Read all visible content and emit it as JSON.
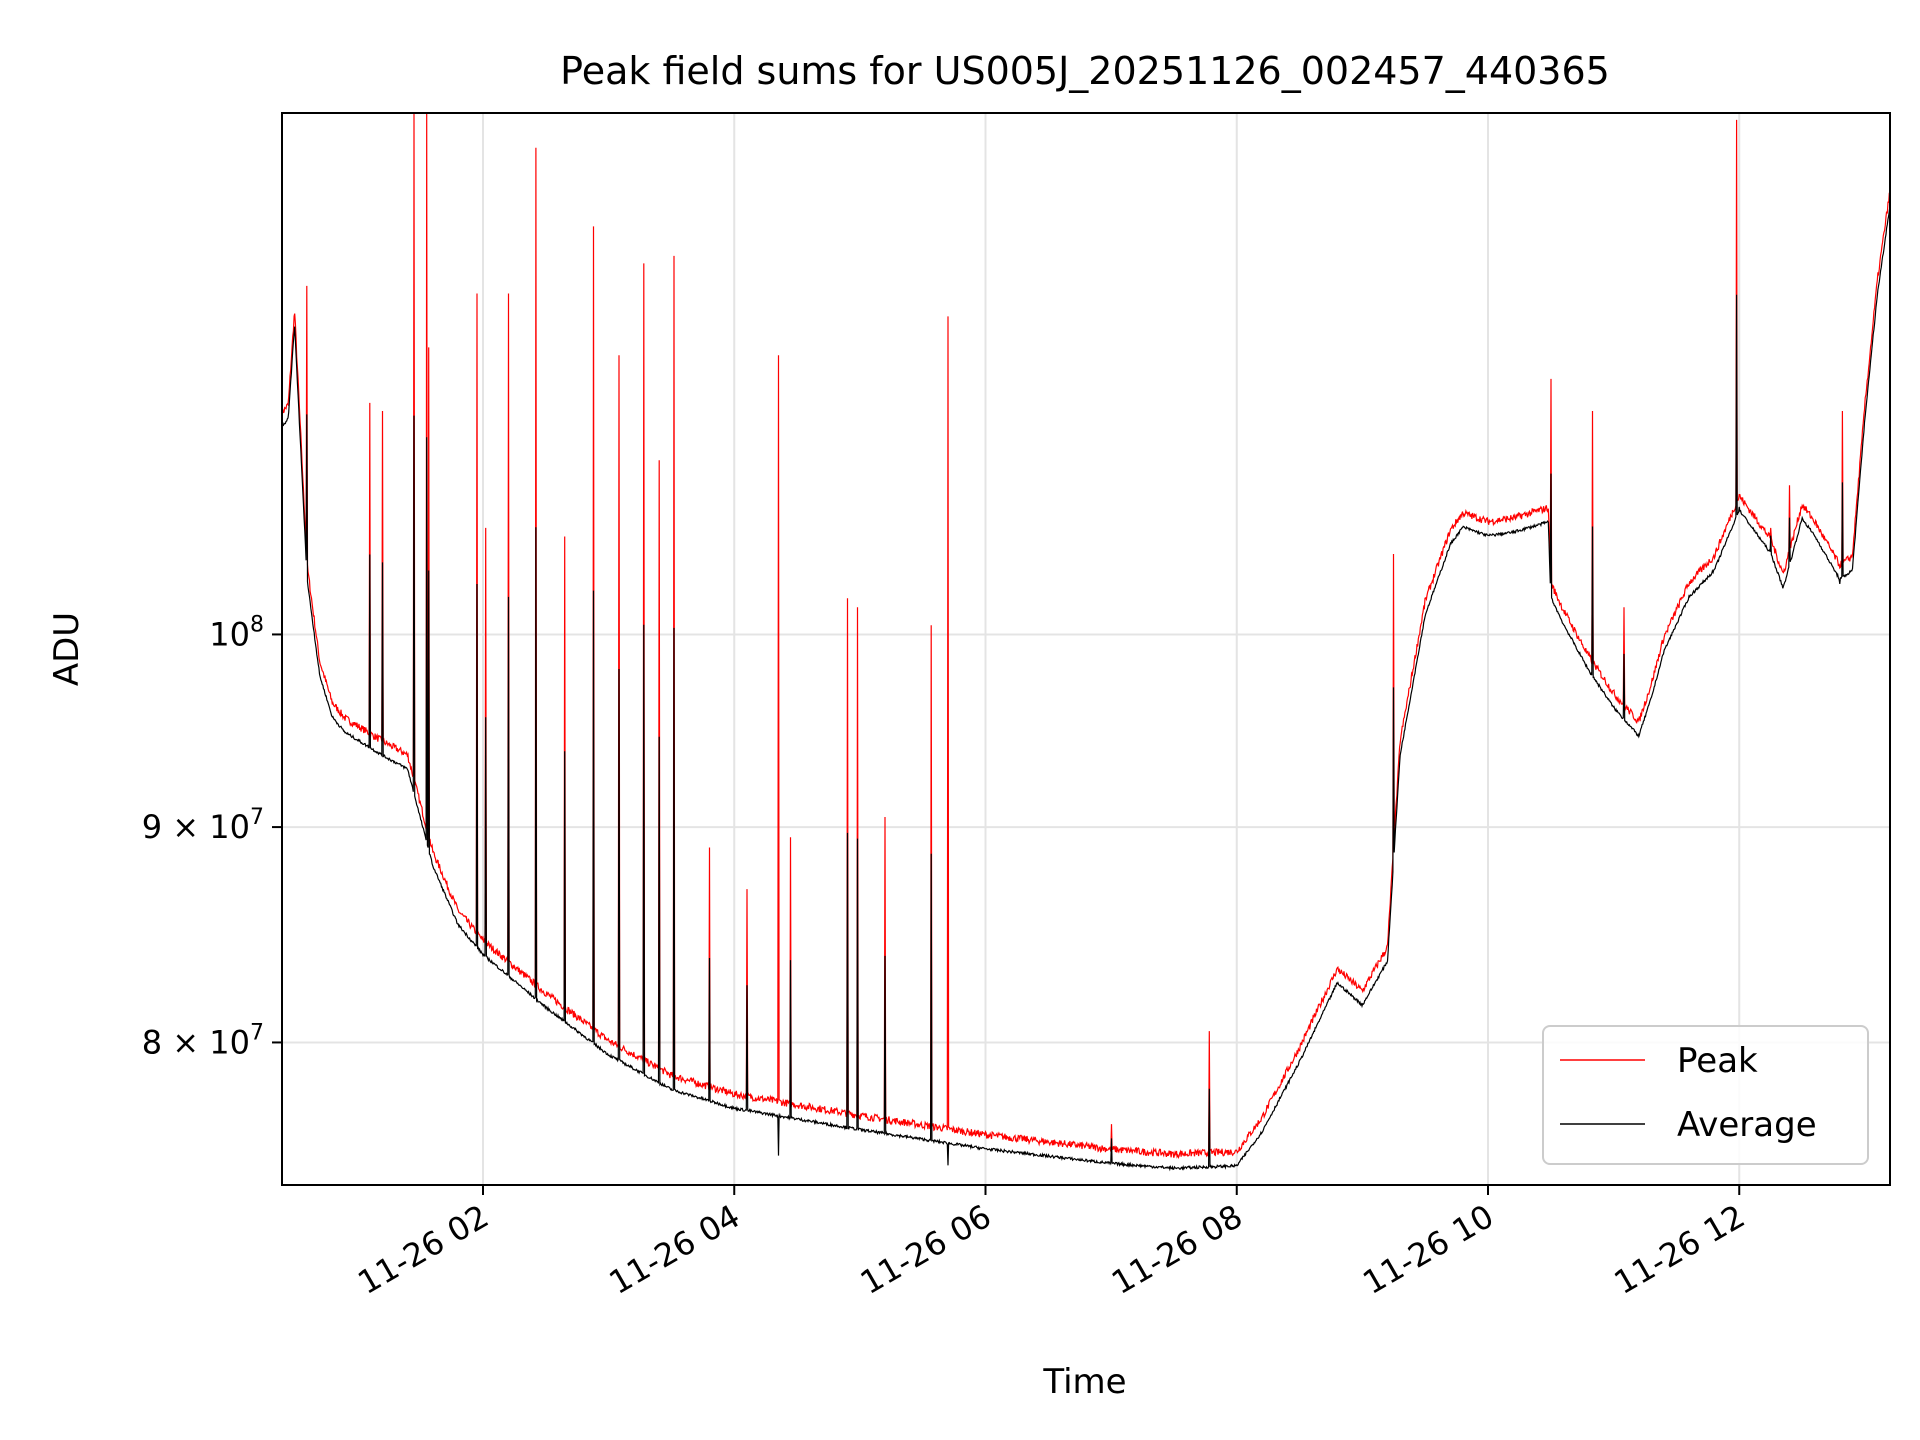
{
  "chart_data": {
    "type": "line",
    "title": "Peak field sums for US005J_20251126_002457_440365",
    "xlabel": "Time",
    "ylabel": "ADU",
    "y_scale": "log",
    "xlim_hours": [
      0.4,
      13.2
    ],
    "ylim": [
      74000000,
      133000000
    ],
    "grid": true,
    "legend_position": "lower right",
    "x_ticks": [
      {
        "hour": 2,
        "label": "11-26 02"
      },
      {
        "hour": 4,
        "label": "11-26 04"
      },
      {
        "hour": 6,
        "label": "11-26 06"
      },
      {
        "hour": 8,
        "label": "11-26 08"
      },
      {
        "hour": 10,
        "label": "11-26 10"
      },
      {
        "hour": 12,
        "label": "11-26 12"
      }
    ],
    "y_ticks": [
      {
        "value": 100000000,
        "base": "10",
        "exp": "8"
      },
      {
        "value": 90000000,
        "base": "9 × 10",
        "exp": "7"
      },
      {
        "value": 80000000,
        "base": "8 × 10",
        "exp": "7"
      }
    ],
    "series": [
      {
        "name": "Peak",
        "color": "#ff0000",
        "baseline_hours": [
          0.4,
          0.45,
          0.5,
          0.6,
          0.7,
          0.8,
          0.9,
          1.0,
          1.2,
          1.4,
          1.6,
          1.8,
          2.0,
          2.5,
          3.0,
          3.5,
          4.0,
          5.0,
          6.0,
          7.0,
          7.5,
          8.0,
          8.2,
          8.5,
          8.8,
          9.0,
          9.2,
          9.3,
          9.5,
          9.7,
          9.8,
          10.0,
          10.2,
          10.48,
          10.5,
          10.6,
          10.8,
          11.0,
          11.2,
          11.3,
          11.4,
          11.6,
          11.8,
          12.0,
          12.25,
          12.35,
          12.5,
          12.6,
          12.8,
          12.9,
          13.0,
          13.1,
          13.2
        ],
        "baseline_values": [
          112500000,
          113000000,
          119000000,
          103500000,
          98200000,
          96000000,
          95200000,
          94800000,
          94000000,
          93300000,
          88500000,
          85700000,
          84300000,
          81900000,
          79800000,
          78300000,
          77500000,
          76600000,
          75800000,
          75200000,
          75000000,
          75100000,
          76500000,
          79500000,
          83000000,
          82000000,
          84000000,
          94000000,
          101500000,
          105500000,
          106500000,
          106000000,
          106200000,
          106800000,
          102500000,
          101000000,
          98500000,
          96500000,
          95000000,
          97000000,
          99500000,
          102500000,
          104000000,
          107500000,
          105000000,
          103000000,
          107000000,
          106000000,
          103500000,
          104000000,
          113000000,
          121000000,
          127000000
        ],
        "spikes": [
          {
            "hour": 0.6,
            "value": 121000000
          },
          {
            "hour": 1.1,
            "value": 113500000
          },
          {
            "hour": 1.2,
            "value": 113000000
          },
          {
            "hour": 1.45,
            "value": 133000000
          },
          {
            "hour": 1.55,
            "value": 133000000
          },
          {
            "hour": 1.57,
            "value": 117000000
          },
          {
            "hour": 1.95,
            "value": 120500000
          },
          {
            "hour": 2.02,
            "value": 106000000
          },
          {
            "hour": 2.2,
            "value": 120500000
          },
          {
            "hour": 2.42,
            "value": 130500000
          },
          {
            "hour": 2.65,
            "value": 105500000
          },
          {
            "hour": 2.88,
            "value": 125000000
          },
          {
            "hour": 3.08,
            "value": 116500000
          },
          {
            "hour": 3.28,
            "value": 122500000
          },
          {
            "hour": 3.4,
            "value": 110000000
          },
          {
            "hour": 3.52,
            "value": 123000000
          },
          {
            "hour": 3.8,
            "value": 89000000
          },
          {
            "hour": 4.1,
            "value": 87000000
          },
          {
            "hour": 4.35,
            "value": 116500000
          },
          {
            "hour": 4.45,
            "value": 89500000
          },
          {
            "hour": 4.9,
            "value": 102000000
          },
          {
            "hour": 4.98,
            "value": 101500000
          },
          {
            "hour": 5.2,
            "value": 90500000
          },
          {
            "hour": 5.57,
            "value": 100500000
          },
          {
            "hour": 5.7,
            "value": 119000000
          },
          {
            "hour": 7.0,
            "value": 76500000
          },
          {
            "hour": 7.78,
            "value": 80500000
          },
          {
            "hour": 9.25,
            "value": 104500000
          },
          {
            "hour": 10.5,
            "value": 115000000
          },
          {
            "hour": 10.83,
            "value": 113000000
          },
          {
            "hour": 11.08,
            "value": 101500000
          },
          {
            "hour": 11.98,
            "value": 132500000
          },
          {
            "hour": 12.0,
            "value": 107000000
          },
          {
            "hour": 12.25,
            "value": 106000000
          },
          {
            "hour": 12.4,
            "value": 108500000
          },
          {
            "hour": 12.82,
            "value": 113000000
          }
        ]
      },
      {
        "name": "Average",
        "color": "#000000",
        "baseline_offset_fraction": -0.005,
        "spike_fraction": 0.55,
        "dips": [
          {
            "hour": 4.35,
            "value": 75200000
          },
          {
            "hour": 5.7,
            "value": 74800000
          },
          {
            "hour": 12.8,
            "value": 102800000
          }
        ]
      }
    ]
  }
}
